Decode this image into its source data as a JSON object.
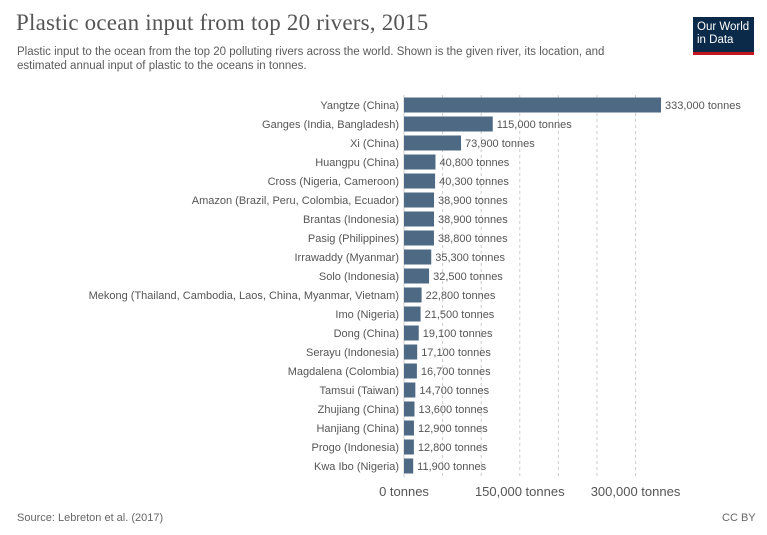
{
  "header": {
    "title": "Plastic ocean input from top 20 rivers, 2015",
    "subtitle": "Plastic input to the ocean from the top 20 polluting rivers across the world. Shown is the given river, its location, and estimated annual input of plastic to the oceans in tonnes.",
    "logo_line1": "Our World",
    "logo_line2": "in Data"
  },
  "footer": {
    "source": "Source: Lebreton et al. (2017)",
    "license": "CC BY"
  },
  "colors": {
    "bar": "#4e6983",
    "grid": "#cccccc",
    "logo_bg": "#0b2a4a",
    "logo_accent": "#c4161c"
  },
  "chart_data": {
    "type": "bar",
    "orientation": "horizontal",
    "title": "Plastic ocean input from top 20 rivers, 2015",
    "categories": [
      "Yangtze (China)",
      "Ganges (India, Bangladesh)",
      "Xi (China)",
      "Huangpu (China)",
      "Cross (Nigeria, Cameroon)",
      "Amazon (Brazil, Peru, Colombia, Ecuador)",
      "Brantas (Indonesia)",
      "Pasig (Philippines)",
      "Irrawaddy (Myanmar)",
      "Solo (Indonesia)",
      "Mekong (Thailand, Cambodia, Laos, China, Myanmar, Vietnam)",
      "Imo (Nigeria)",
      "Dong (China)",
      "Serayu (Indonesia)",
      "Magdalena (Colombia)",
      "Tamsui (Taiwan)",
      "Zhujiang (China)",
      "Hanjiang (China)",
      "Progo (Indonesia)",
      "Kwa Ibo (Nigeria)"
    ],
    "values": [
      333000,
      115000,
      73900,
      40800,
      40300,
      38900,
      38900,
      38800,
      35300,
      32500,
      22800,
      21500,
      19100,
      17100,
      16700,
      14700,
      13600,
      12900,
      12800,
      11900
    ],
    "value_labels": [
      "333,000 tonnes",
      "115,000 tonnes",
      "73,900 tonnes",
      "40,800 tonnes",
      "40,300 tonnes",
      "38,900 tonnes",
      "38,900 tonnes",
      "38,800 tonnes",
      "35,300 tonnes",
      "32,500 tonnes",
      "22,800 tonnes",
      "21,500 tonnes",
      "19,100 tonnes",
      "17,100 tonnes",
      "16,700 tonnes",
      "14,700 tonnes",
      "13,600 tonnes",
      "12,900 tonnes",
      "12,800 tonnes",
      "11,900 tonnes"
    ],
    "xticks": [
      0,
      150000,
      300000
    ],
    "xtick_labels": [
      "0 tonnes",
      "150,000 tonnes",
      "300,000 tonnes"
    ],
    "grid_values": [
      0,
      50000,
      100000,
      150000,
      200000,
      250000,
      300000
    ],
    "xlim": [
      0,
      333000
    ],
    "grid": true,
    "unit": "tonnes"
  }
}
